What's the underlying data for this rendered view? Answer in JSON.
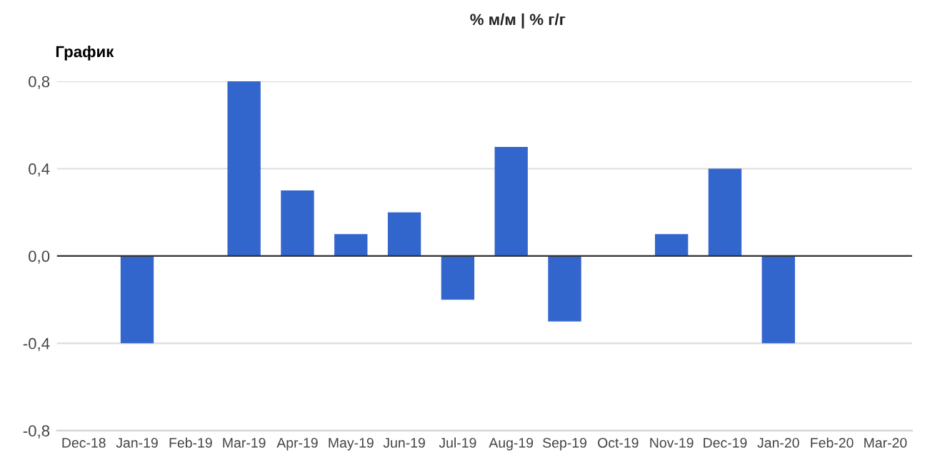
{
  "chart_data": {
    "type": "bar",
    "title": "График",
    "annotations": [
      "% м/м | % г/г"
    ],
    "categories": [
      "Dec-18",
      "Jan-19",
      "Feb-19",
      "Mar-19",
      "Apr-19",
      "May-19",
      "Jun-19",
      "Jul-19",
      "Aug-19",
      "Sep-19",
      "Oct-19",
      "Nov-19",
      "Dec-19",
      "Jan-20",
      "Feb-20",
      "Mar-20"
    ],
    "values": [
      null,
      -0.4,
      0,
      0.8,
      0.3,
      0.1,
      0.2,
      -0.2,
      0.5,
      -0.3,
      0,
      0.1,
      0.4,
      -0.4,
      null,
      null
    ],
    "color": "#3366cc",
    "ylim": [
      -0.8,
      0.8
    ],
    "yticks": [
      {
        "value": -0.8,
        "label": "-0,8"
      },
      {
        "value": -0.4,
        "label": "-0,4"
      },
      {
        "value": 0,
        "label": "0,0"
      },
      {
        "value": 0.4,
        "label": "0,4"
      },
      {
        "value": 0.8,
        "label": "0,8"
      }
    ],
    "grid": "y",
    "legend": false
  }
}
